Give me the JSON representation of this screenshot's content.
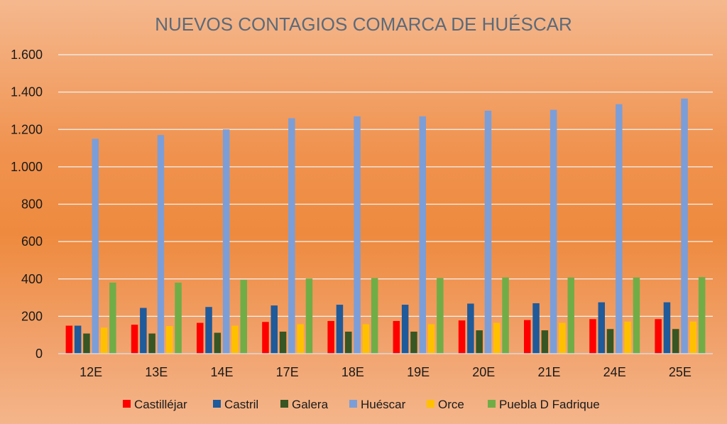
{
  "chart_data": {
    "type": "bar",
    "title": "NUEVOS CONTAGIOS COMARCA DE HUÉSCAR",
    "xlabel": "",
    "ylabel": "",
    "ylim": [
      0,
      1600
    ],
    "yticks": [
      0,
      200,
      400,
      600,
      800,
      1000,
      1200,
      1400,
      1600
    ],
    "ytick_labels": [
      "0",
      "200",
      "400",
      "600",
      "800",
      "1.000",
      "1.200",
      "1.400",
      "1.600"
    ],
    "grid": true,
    "legend_position": "bottom",
    "categories": [
      "12E",
      "13E",
      "14E",
      "17E",
      "18E",
      "19E",
      "20E",
      "21E",
      "24E",
      "25E"
    ],
    "series": [
      {
        "name": "Castilléjar",
        "color": "#ff0000",
        "values": [
          150,
          155,
          165,
          170,
          175,
          175,
          178,
          180,
          185,
          185
        ]
      },
      {
        "name": "Castril",
        "color": "#1f5a9b",
        "values": [
          150,
          245,
          250,
          258,
          262,
          262,
          268,
          270,
          275,
          275
        ]
      },
      {
        "name": "Galera",
        "color": "#375623",
        "values": [
          108,
          108,
          112,
          118,
          118,
          118,
          125,
          125,
          132,
          132
        ]
      },
      {
        "name": "Huéscar",
        "color": "#7b9ed8",
        "values": [
          1150,
          1170,
          1200,
          1260,
          1270,
          1270,
          1300,
          1305,
          1335,
          1365
        ]
      },
      {
        "name": "Orce",
        "color": "#ffc000",
        "values": [
          140,
          148,
          150,
          158,
          158,
          158,
          165,
          165,
          172,
          172
        ]
      },
      {
        "name": "Puebla D Fadrique",
        "color": "#70ad47",
        "values": [
          380,
          380,
          395,
          402,
          405,
          405,
          408,
          408,
          408,
          410
        ]
      }
    ]
  }
}
